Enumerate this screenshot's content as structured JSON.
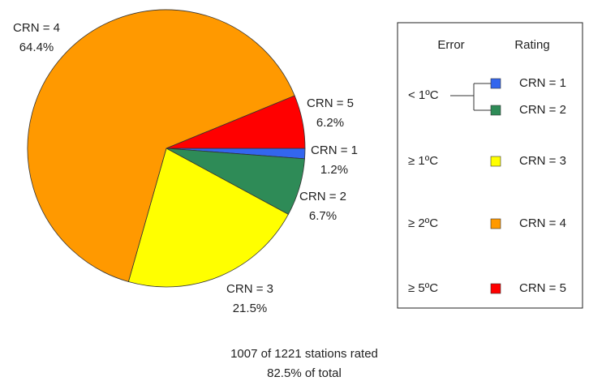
{
  "chart_data": {
    "type": "pie",
    "categories": [
      "CRN = 1",
      "CRN = 2",
      "CRN = 3",
      "CRN = 4",
      "CRN = 5"
    ],
    "values": [
      1.2,
      6.7,
      21.5,
      64.4,
      6.2
    ],
    "value_labels": [
      "1.2%",
      "6.7%",
      "21.5%",
      "64.4%",
      "6.2%"
    ],
    "colors": [
      "#3366ee",
      "#2e8b57",
      "#ffff00",
      "#ff9900",
      "#ff0000"
    ],
    "legend": {
      "error_header": "Error",
      "rating_header": "Rating",
      "errors": [
        "< 1ºC",
        "≥ 1ºC",
        "≥ 2ºC",
        "≥ 5ºC"
      ]
    },
    "annotations": [
      "1007 of 1221 stations rated",
      "82.5% of total"
    ]
  }
}
